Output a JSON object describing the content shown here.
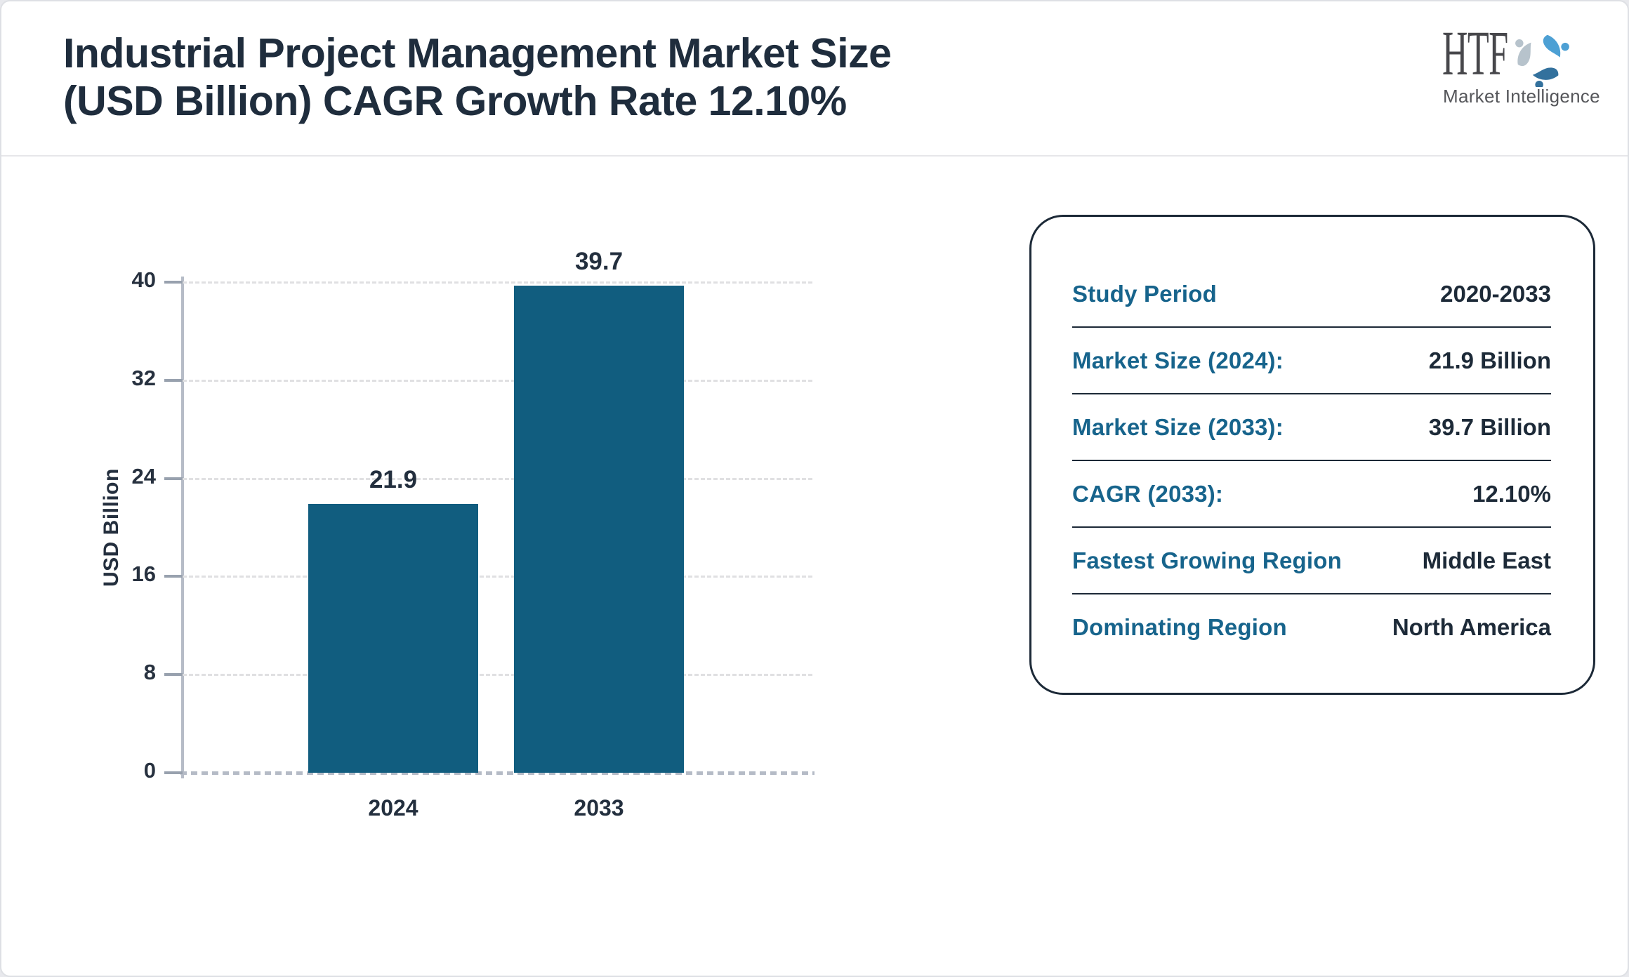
{
  "header": {
    "title_line1": "Industrial Project Management Market Size",
    "title_line2": "(USD Billion) CAGR Growth Rate 12.10%",
    "logo": {
      "text": "HTF",
      "subtext": "Market Intelligence",
      "icon": "htf-swirl-icon",
      "icon_colors": {
        "light_blue": "#4da0d4",
        "steel_blue": "#33719d",
        "gray": "#b7c3cc"
      }
    }
  },
  "chart_data": {
    "type": "bar",
    "title": "Industrial Project Management Market Size (USD Billion) CAGR Growth Rate 12.10%",
    "categories": [
      "2024",
      "2033"
    ],
    "values": [
      21.9,
      39.7
    ],
    "value_labels": [
      "21.9",
      "39.7"
    ],
    "xlabel": "",
    "ylabel": "USD Billion",
    "ylim": [
      0,
      40
    ],
    "yticks": [
      0,
      8,
      16,
      24,
      32,
      40
    ],
    "grid": "horizontal-dashed",
    "legend": "none",
    "bar_color": "#115d7f"
  },
  "info_card": {
    "rows": [
      {
        "label": "Study Period",
        "value": "2020-2033"
      },
      {
        "label": "Market Size (2024):",
        "value": "21.9 Billion"
      },
      {
        "label": "Market Size (2033):",
        "value": "39.7 Billion"
      },
      {
        "label": "CAGR (2033):",
        "value": "12.10%"
      },
      {
        "label": "Fastest Growing Region",
        "value": "Middle East"
      },
      {
        "label": "Dominating Region",
        "value": "North America"
      }
    ]
  },
  "colors": {
    "bar": "#115d7f",
    "label_teal": "#17648c",
    "text_dark": "#1f2d3d",
    "axis": "#b6bcc7",
    "grid": "#e0e0e2",
    "card_border": "#1c2937"
  }
}
